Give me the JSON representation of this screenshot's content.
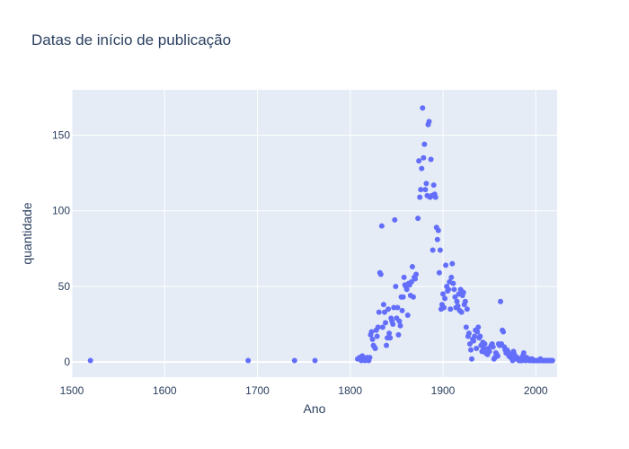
{
  "chart_data": {
    "type": "scatter",
    "title": "Datas de início de publicação",
    "xlabel": "Ano",
    "ylabel": "quantidade",
    "xlim": [
      1500,
      2023
    ],
    "ylim": [
      -10,
      180
    ],
    "xticks": [
      1500,
      1600,
      1700,
      1800,
      1900,
      2000
    ],
    "yticks": [
      0,
      50,
      100,
      150
    ],
    "grid": true,
    "legend": "none",
    "colors": {
      "marker": "#636efa",
      "plot_bg": "#e5ecf6",
      "grid": "#ffffff",
      "text": "#2a3f5f"
    },
    "points": [
      [
        1520,
        1
      ],
      [
        1690,
        1
      ],
      [
        1740,
        1
      ],
      [
        1762,
        1
      ],
      [
        1808,
        2
      ],
      [
        1810,
        3
      ],
      [
        1812,
        1
      ],
      [
        1813,
        4
      ],
      [
        1815,
        2
      ],
      [
        1816,
        1
      ],
      [
        1818,
        3
      ],
      [
        1819,
        2
      ],
      [
        1820,
        1
      ],
      [
        1821,
        3
      ],
      [
        1822,
        18
      ],
      [
        1823,
        20
      ],
      [
        1824,
        15
      ],
      [
        1825,
        11
      ],
      [
        1826,
        10
      ],
      [
        1827,
        9
      ],
      [
        1828,
        21
      ],
      [
        1829,
        17
      ],
      [
        1830,
        23
      ],
      [
        1831,
        33
      ],
      [
        1832,
        59
      ],
      [
        1833,
        58
      ],
      [
        1834,
        90
      ],
      [
        1835,
        23
      ],
      [
        1836,
        38
      ],
      [
        1837,
        33
      ],
      [
        1838,
        26
      ],
      [
        1839,
        11
      ],
      [
        1840,
        16
      ],
      [
        1841,
        35
      ],
      [
        1842,
        19
      ],
      [
        1843,
        16
      ],
      [
        1844,
        29
      ],
      [
        1845,
        27
      ],
      [
        1846,
        25
      ],
      [
        1847,
        36
      ],
      [
        1848,
        94
      ],
      [
        1849,
        50
      ],
      [
        1850,
        29
      ],
      [
        1851,
        36
      ],
      [
        1852,
        18
      ],
      [
        1853,
        27
      ],
      [
        1854,
        24
      ],
      [
        1855,
        43
      ],
      [
        1856,
        34
      ],
      [
        1857,
        43
      ],
      [
        1858,
        56
      ],
      [
        1859,
        51
      ],
      [
        1860,
        50
      ],
      [
        1861,
        48
      ],
      [
        1862,
        31
      ],
      [
        1863,
        52
      ],
      [
        1864,
        51
      ],
      [
        1865,
        44
      ],
      [
        1866,
        53
      ],
      [
        1867,
        63
      ],
      [
        1868,
        43
      ],
      [
        1869,
        56
      ],
      [
        1870,
        55
      ],
      [
        1871,
        58
      ],
      [
        1873,
        95
      ],
      [
        1874,
        133
      ],
      [
        1875,
        109
      ],
      [
        1876,
        114
      ],
      [
        1877,
        128
      ],
      [
        1878,
        168
      ],
      [
        1879,
        135
      ],
      [
        1880,
        144
      ],
      [
        1881,
        114
      ],
      [
        1882,
        118
      ],
      [
        1883,
        110
      ],
      [
        1884,
        157
      ],
      [
        1885,
        159
      ],
      [
        1886,
        109
      ],
      [
        1887,
        134
      ],
      [
        1888,
        110
      ],
      [
        1889,
        74
      ],
      [
        1890,
        117
      ],
      [
        1891,
        111
      ],
      [
        1892,
        109
      ],
      [
        1893,
        89
      ],
      [
        1894,
        81
      ],
      [
        1895,
        87
      ],
      [
        1896,
        59
      ],
      [
        1897,
        74
      ],
      [
        1898,
        35
      ],
      [
        1899,
        38
      ],
      [
        1900,
        45
      ],
      [
        1901,
        36
      ],
      [
        1902,
        42
      ],
      [
        1903,
        64
      ],
      [
        1904,
        50
      ],
      [
        1905,
        47
      ],
      [
        1906,
        48
      ],
      [
        1907,
        53
      ],
      [
        1908,
        35
      ],
      [
        1909,
        56
      ],
      [
        1910,
        65
      ],
      [
        1911,
        52
      ],
      [
        1912,
        48
      ],
      [
        1913,
        43
      ],
      [
        1914,
        36
      ],
      [
        1915,
        40
      ],
      [
        1916,
        37
      ],
      [
        1917,
        45
      ],
      [
        1918,
        34
      ],
      [
        1919,
        48
      ],
      [
        1920,
        33
      ],
      [
        1921,
        44
      ],
      [
        1922,
        46
      ],
      [
        1923,
        38
      ],
      [
        1924,
        40
      ],
      [
        1925,
        23
      ],
      [
        1926,
        35
      ],
      [
        1927,
        17
      ],
      [
        1928,
        19
      ],
      [
        1929,
        12
      ],
      [
        1930,
        8
      ],
      [
        1931,
        2
      ],
      [
        1932,
        15
      ],
      [
        1933,
        14
      ],
      [
        1934,
        17
      ],
      [
        1935,
        21
      ],
      [
        1936,
        9
      ],
      [
        1937,
        20
      ],
      [
        1938,
        23
      ],
      [
        1939,
        16
      ],
      [
        1940,
        17
      ],
      [
        1941,
        11
      ],
      [
        1942,
        7
      ],
      [
        1943,
        13
      ],
      [
        1944,
        9
      ],
      [
        1945,
        12
      ],
      [
        1946,
        6
      ],
      [
        1947,
        6
      ],
      [
        1948,
        5
      ],
      [
        1949,
        9
      ],
      [
        1950,
        7
      ],
      [
        1952,
        11
      ],
      [
        1953,
        12
      ],
      [
        1954,
        10
      ],
      [
        1955,
        2
      ],
      [
        1956,
        3
      ],
      [
        1957,
        6
      ],
      [
        1958,
        5
      ],
      [
        1959,
        4
      ],
      [
        1960,
        12
      ],
      [
        1961,
        11
      ],
      [
        1962,
        40
      ],
      [
        1963,
        12
      ],
      [
        1964,
        21
      ],
      [
        1965,
        20
      ],
      [
        1966,
        10
      ],
      [
        1967,
        8
      ],
      [
        1968,
        6
      ],
      [
        1969,
        8
      ],
      [
        1970,
        7
      ],
      [
        1971,
        4
      ],
      [
        1972,
        5
      ],
      [
        1973,
        3
      ],
      [
        1974,
        3
      ],
      [
        1975,
        1
      ],
      [
        1976,
        7
      ],
      [
        1977,
        5
      ],
      [
        1978,
        2
      ],
      [
        1979,
        3
      ],
      [
        1980,
        3
      ],
      [
        1981,
        2
      ],
      [
        1982,
        1
      ],
      [
        1983,
        2
      ],
      [
        1984,
        1
      ],
      [
        1985,
        1
      ],
      [
        1986,
        4
      ],
      [
        1987,
        6
      ],
      [
        1988,
        2
      ],
      [
        1989,
        1
      ],
      [
        1990,
        3
      ],
      [
        1991,
        2
      ],
      [
        1992,
        2
      ],
      [
        1993,
        1
      ],
      [
        1994,
        2
      ],
      [
        1995,
        1
      ],
      [
        1996,
        2
      ],
      [
        1997,
        1
      ],
      [
        1998,
        1
      ],
      [
        1999,
        1
      ],
      [
        2000,
        1
      ],
      [
        2001,
        1
      ],
      [
        2002,
        1
      ],
      [
        2003,
        1
      ],
      [
        2004,
        1
      ],
      [
        2005,
        2
      ],
      [
        2006,
        1
      ],
      [
        2007,
        1
      ],
      [
        2008,
        1
      ],
      [
        2009,
        1
      ],
      [
        2010,
        1
      ],
      [
        2011,
        1
      ],
      [
        2012,
        1
      ],
      [
        2013,
        1
      ],
      [
        2014,
        1
      ],
      [
        2015,
        1
      ],
      [
        2016,
        1
      ],
      [
        2017,
        1
      ],
      [
        2018,
        1
      ]
    ]
  }
}
